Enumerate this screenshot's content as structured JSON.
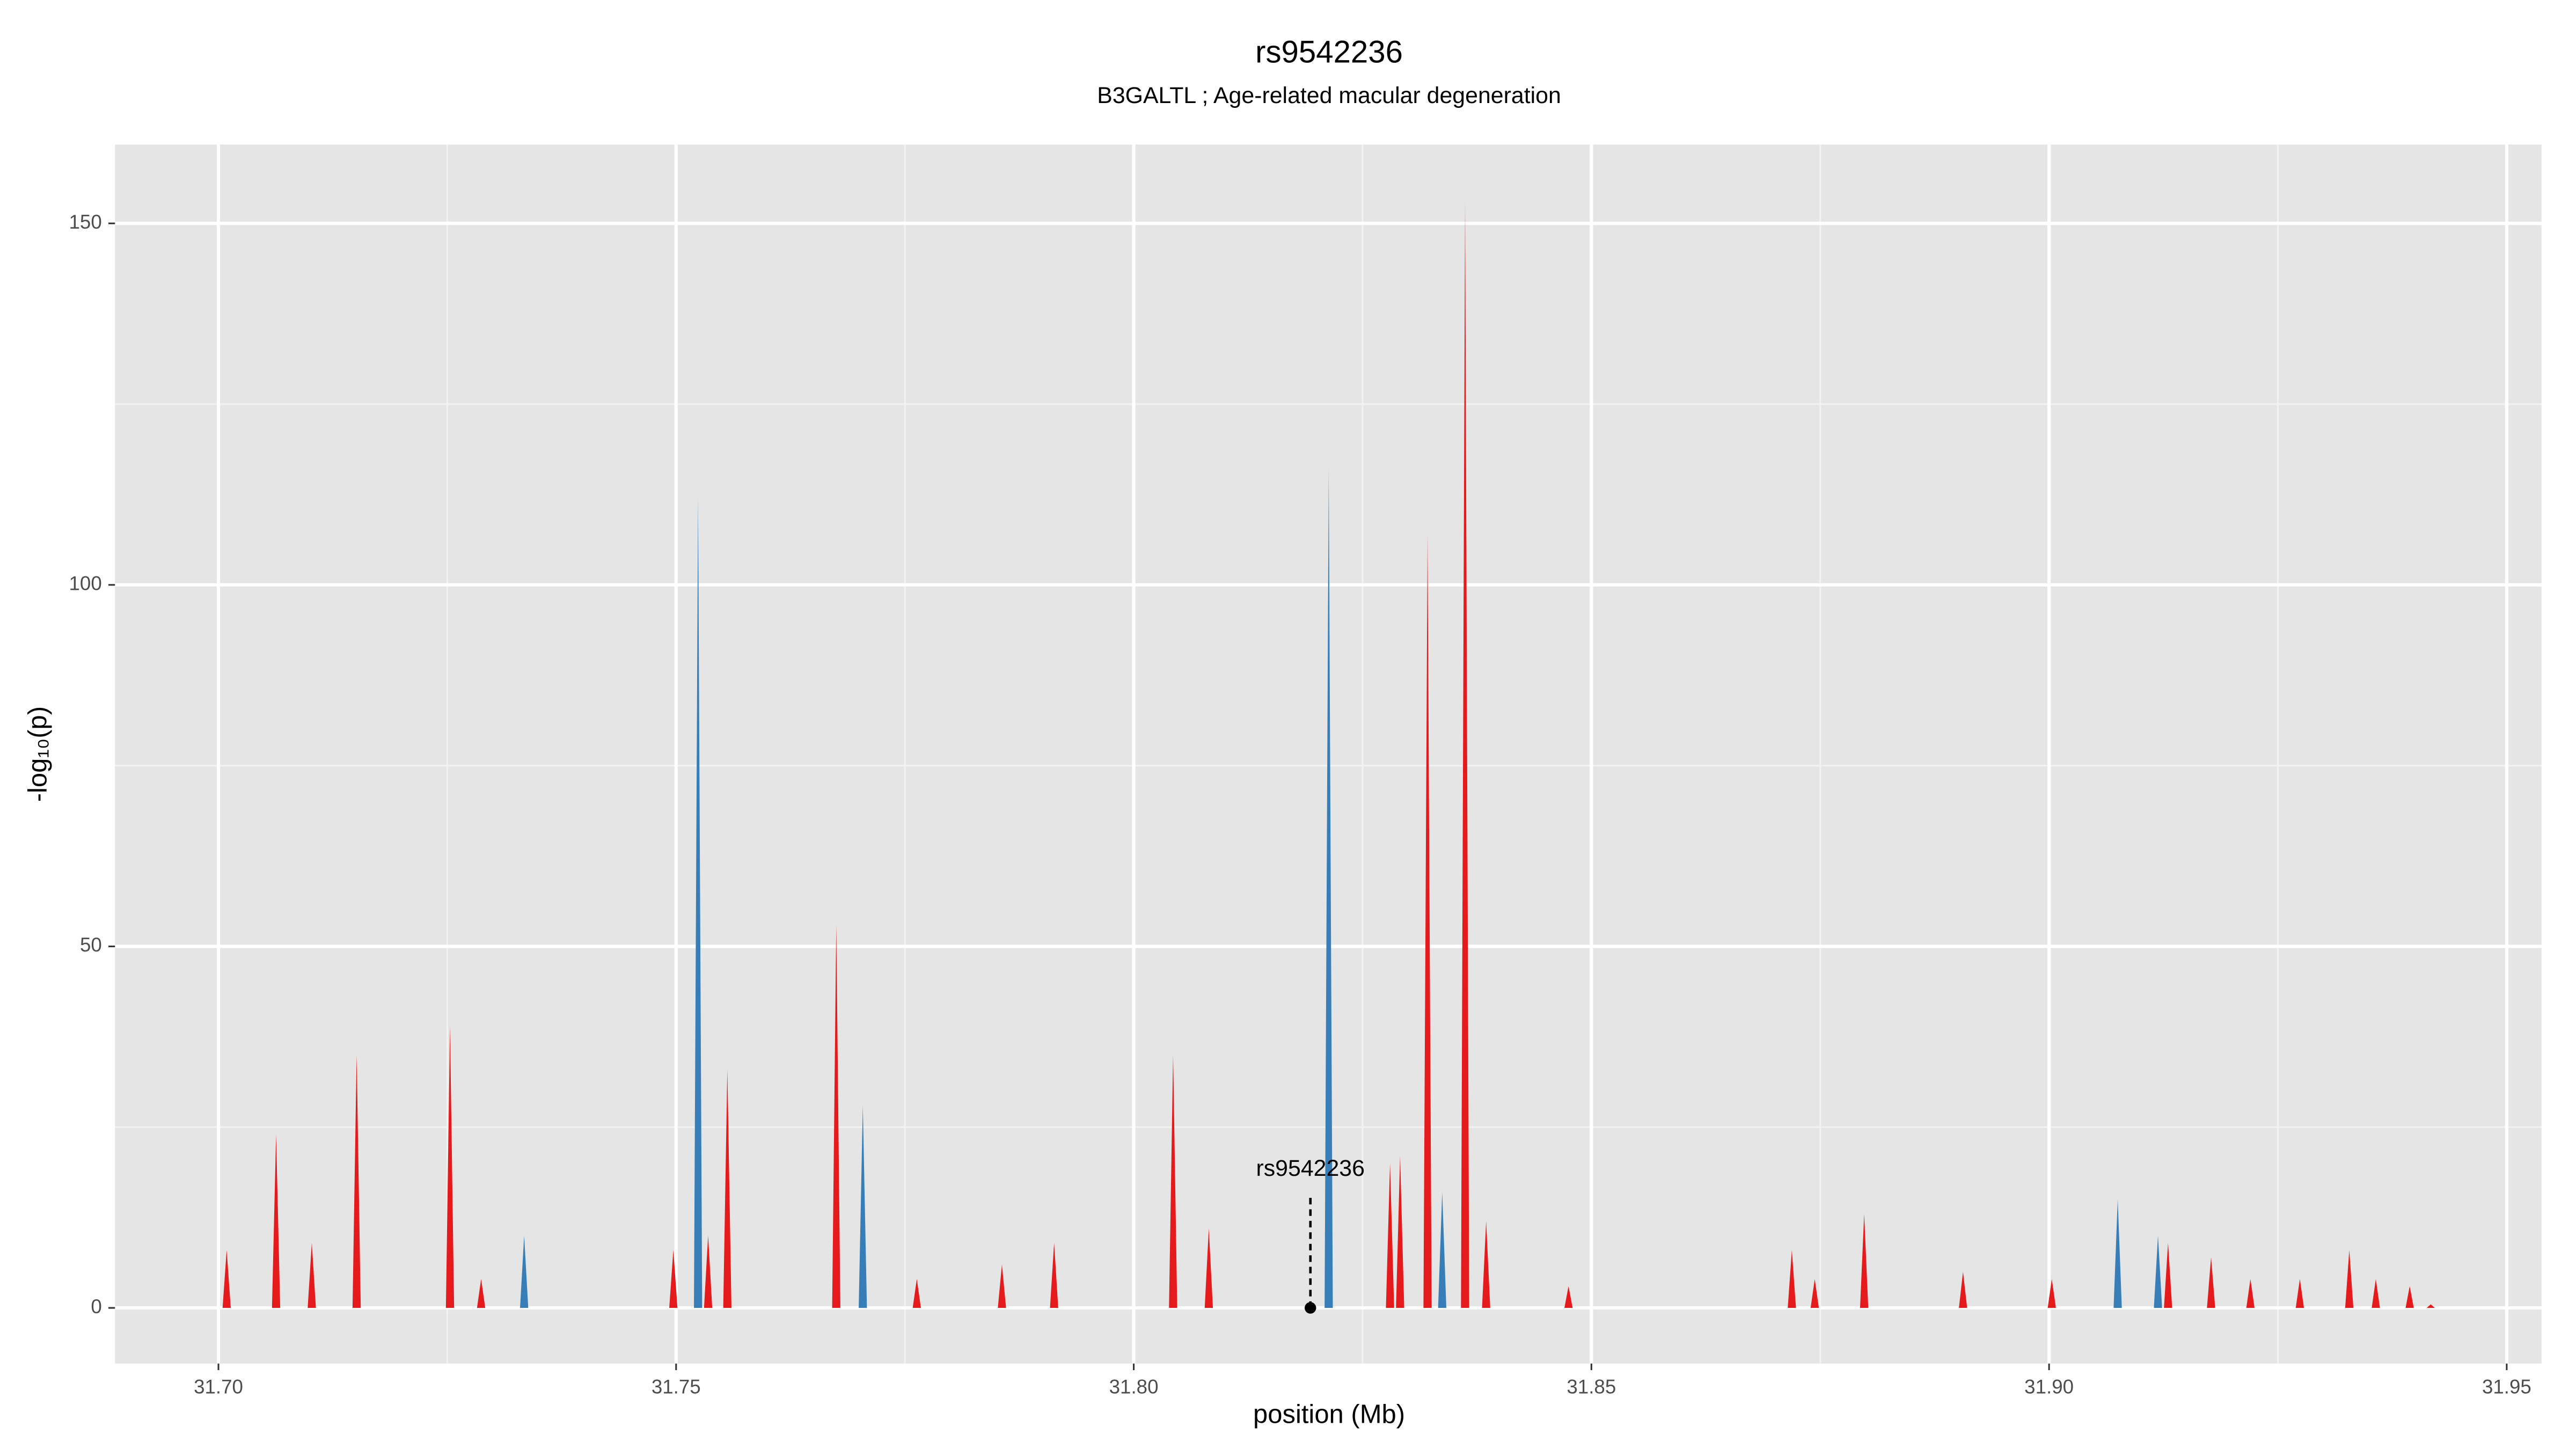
{
  "chart_data": {
    "type": "area",
    "title": "rs9542236",
    "subtitle": "B3GALTL ; Age-related macular degeneration",
    "xlabel": "position (Mb)",
    "ylabel": "-log₁₀(p)",
    "xlim": [
      31.6887,
      31.9538
    ],
    "ylim": [
      -7.7,
      160.9
    ],
    "xticks": [
      {
        "value": 31.7,
        "label": "31.70"
      },
      31.75,
      {
        "value": 31.8,
        "label": "31.80"
      },
      31.85,
      {
        "value": 31.9,
        "label": "31.90"
      },
      31.95
    ],
    "yticks": [
      0,
      50,
      100,
      150
    ],
    "grid": true,
    "series": [
      {
        "color": "#e41a1c",
        "x": [
          31.7009,
          31.7063,
          31.7102,
          31.7151,
          31.7253,
          31.7287,
          31.7497,
          31.7535,
          31.7556,
          31.7675,
          31.7763,
          31.7856,
          31.7913,
          31.8043,
          31.8082,
          31.828,
          31.8291,
          31.8321,
          31.8362,
          31.8385,
          31.8475,
          31.8719,
          31.8744,
          31.8798,
          31.8906,
          31.9003,
          31.913,
          31.9177,
          31.922,
          31.9274,
          31.9328,
          31.9357,
          31.9394,
          31.9417
        ],
        "values": [
          8,
          24,
          9,
          35,
          39,
          4,
          8,
          10,
          33,
          53,
          4,
          6,
          9,
          35,
          11,
          20,
          21,
          107,
          153,
          12,
          3,
          8,
          4,
          13,
          5,
          4,
          9,
          7,
          4,
          4,
          8,
          4,
          3,
          0.5
        ]
      },
      {
        "color": "#377eb8",
        "x": [
          31.7334,
          31.7524,
          31.7704,
          31.8213,
          31.8337,
          31.9075,
          31.9119
        ],
        "values": [
          10,
          112,
          28,
          116,
          16,
          15,
          10
        ]
      }
    ],
    "annotation": {
      "text": "rs9542236",
      "x": 31.8193,
      "y": 0
    }
  }
}
